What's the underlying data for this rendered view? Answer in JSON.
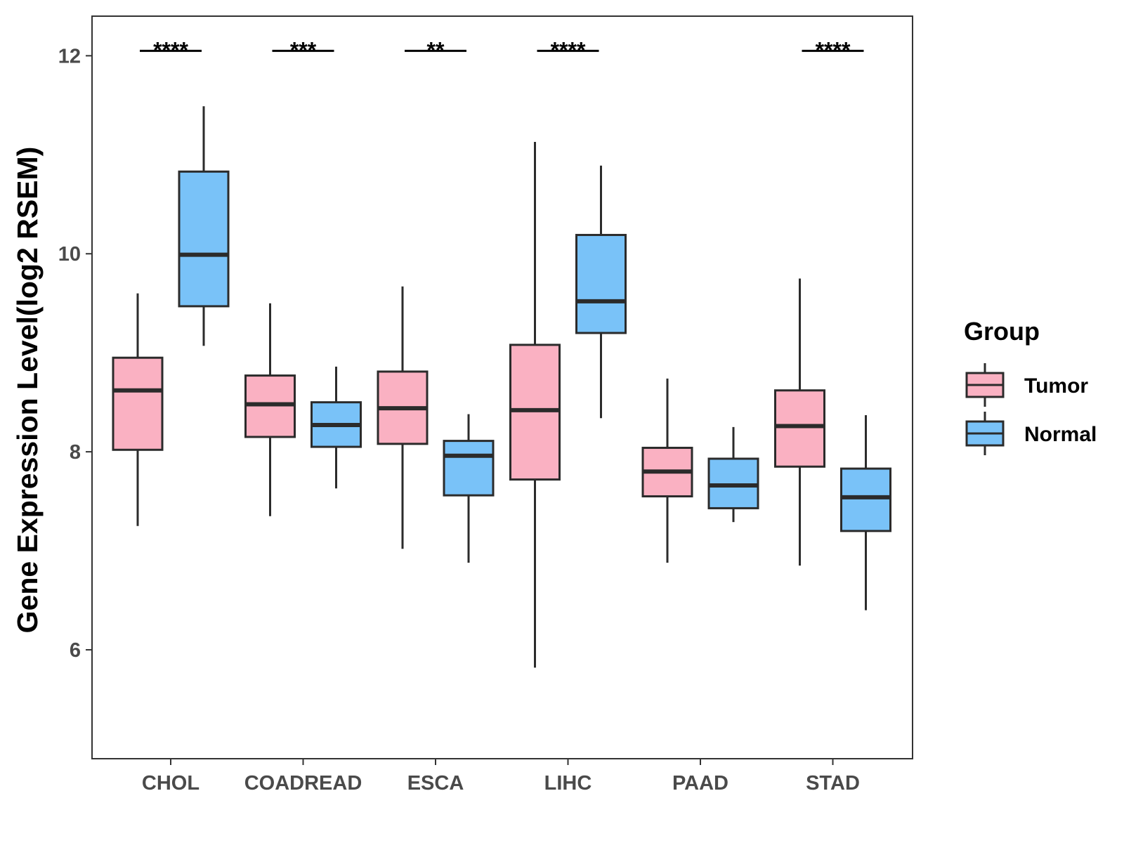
{
  "chart_data": {
    "type": "boxplot",
    "title": "",
    "xlabel": "",
    "ylabel": "Gene Expression Level(log2 RSEM)",
    "ylim": [
      4.9,
      12.4
    ],
    "yticks": [
      6,
      8,
      10,
      12
    ],
    "grid": false,
    "categories": [
      "CHOL",
      "COADREAD",
      "ESCA",
      "LIHC",
      "PAAD",
      "STAD"
    ],
    "series": [
      {
        "name": "Tumor",
        "color": "#FAB1C2",
        "boxes": [
          {
            "min": 7.25,
            "q1": 8.02,
            "median": 8.62,
            "q3": 8.95,
            "max": 9.6
          },
          {
            "min": 7.35,
            "q1": 8.15,
            "median": 8.48,
            "q3": 8.77,
            "max": 9.5
          },
          {
            "min": 7.02,
            "q1": 8.08,
            "median": 8.44,
            "q3": 8.81,
            "max": 9.67
          },
          {
            "min": 5.82,
            "q1": 7.72,
            "median": 8.42,
            "q3": 9.08,
            "max": 11.13
          },
          {
            "min": 6.88,
            "q1": 7.55,
            "median": 7.8,
            "q3": 8.04,
            "max": 8.74
          },
          {
            "min": 6.85,
            "q1": 7.85,
            "median": 8.26,
            "q3": 8.62,
            "max": 9.75
          }
        ]
      },
      {
        "name": "Normal",
        "color": "#79C2F8",
        "boxes": [
          {
            "min": 9.07,
            "q1": 9.47,
            "median": 9.99,
            "q3": 10.83,
            "max": 11.49
          },
          {
            "min": 7.63,
            "q1": 8.05,
            "median": 8.27,
            "q3": 8.5,
            "max": 8.86
          },
          {
            "min": 6.88,
            "q1": 7.56,
            "median": 7.96,
            "q3": 8.11,
            "max": 8.38
          },
          {
            "min": 8.34,
            "q1": 9.2,
            "median": 9.52,
            "q3": 10.19,
            "max": 10.89
          },
          {
            "min": 7.29,
            "q1": 7.43,
            "median": 7.66,
            "q3": 7.93,
            "max": 8.25
          },
          {
            "min": 6.4,
            "q1": 7.2,
            "median": 7.54,
            "q3": 7.83,
            "max": 8.37
          }
        ]
      }
    ],
    "significance": [
      "****",
      "***",
      "**",
      "****",
      "",
      "****"
    ],
    "significance_y": 12.05,
    "legend": {
      "title": "Group",
      "position": "right",
      "entries": [
        "Tumor",
        "Normal"
      ]
    },
    "outline_color": "#2b2b2b",
    "median_color": "#2b2b2b"
  }
}
